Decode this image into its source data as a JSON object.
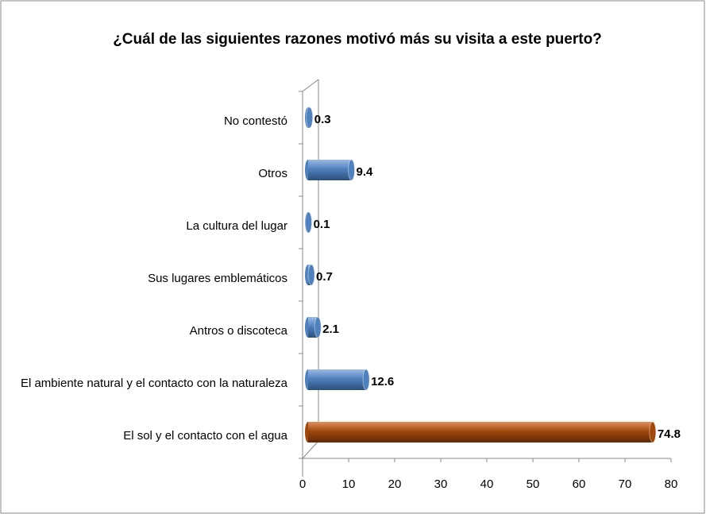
{
  "chart_data": {
    "type": "bar",
    "orientation": "horizontal",
    "style": "cylinder-3d",
    "title": "¿Cuál de las siguientes razones motivó más su visita a este puerto?",
    "categories": [
      "No contestó",
      "Otros",
      "La cultura del lugar",
      "Sus lugares emblemáticos",
      "Antros o discoteca",
      "El ambiente natural y el contacto con la naturaleza",
      "El sol y el contacto con el agua"
    ],
    "values": [
      0.3,
      9.4,
      0.1,
      0.7,
      2.1,
      12.6,
      74.8
    ],
    "colors": [
      "#4f81bd",
      "#4f81bd",
      "#4f81bd",
      "#4f81bd",
      "#4f81bd",
      "#4f81bd",
      "#a0480c"
    ],
    "xlim": [
      0,
      80
    ],
    "xticks": [
      0,
      10,
      20,
      30,
      40,
      50,
      60,
      70,
      80
    ],
    "grid": false
  }
}
